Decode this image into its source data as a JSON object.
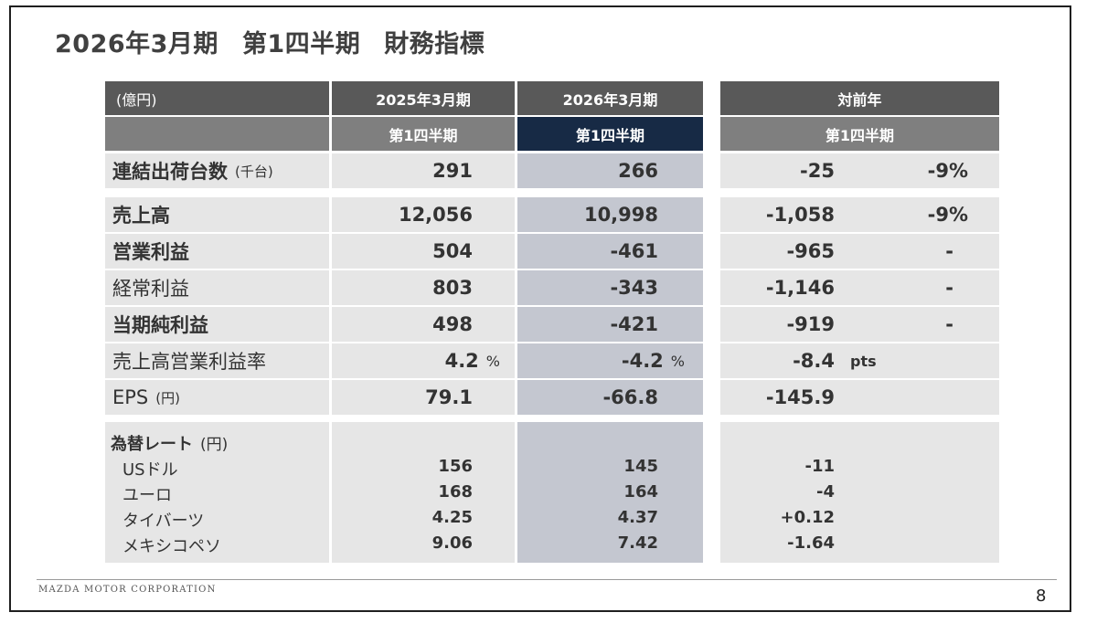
{
  "title": {
    "part1": "2026年3月期",
    "part2": "第1四半期",
    "part3": "財務指標"
  },
  "header": {
    "unit_label": "(億円)",
    "col1": "2025年3月期",
    "col2": "2026年3月期",
    "col3": "対前年",
    "sub1": "第1四半期",
    "sub2": "第1四半期",
    "sub3": "第1四半期"
  },
  "shipments": {
    "label": "連結出荷台数",
    "unit": "(千台)",
    "prev": "291",
    "curr": "266",
    "diff": "-25",
    "pct": "-9%"
  },
  "rows": [
    {
      "label": "売上高",
      "prev": "12,056",
      "curr": "10,998",
      "diff": "-1,058",
      "pct": "-9%"
    },
    {
      "label": "営業利益",
      "prev": "504",
      "curr": "-461",
      "diff": "-965",
      "pct": "-"
    },
    {
      "label": "経常利益",
      "prev": "803",
      "curr": "-343",
      "diff": "-1,146",
      "pct": "-"
    },
    {
      "label": "当期純利益",
      "prev": "498",
      "curr": "-421",
      "diff": "-919",
      "pct": "-"
    }
  ],
  "margin": {
    "label": "売上高営業利益率",
    "prev": "4.2",
    "curr": "-4.2",
    "pct_sign": "%",
    "diff": "-8.4",
    "pts": "pts"
  },
  "eps": {
    "label": "EPS",
    "unit": "(円)",
    "prev": "79.1",
    "curr": "-66.8",
    "diff": "-145.9"
  },
  "fx": {
    "label": "為替レート",
    "unit": "(円)",
    "items": [
      {
        "label": "USドル",
        "prev": "156",
        "curr": "145",
        "diff": "-11"
      },
      {
        "label": "ユーロ",
        "prev": "168",
        "curr": "164",
        "diff": "-4"
      },
      {
        "label": "タイバーツ",
        "prev": "4.25",
        "curr": "4.37",
        "diff": "+0.12"
      },
      {
        "label": "メキシコペソ",
        "prev": "9.06",
        "curr": "7.42",
        "diff": "-1.64"
      }
    ]
  },
  "footer": {
    "brand": "MAZDA MOTOR CORPORATION",
    "page": "8"
  }
}
